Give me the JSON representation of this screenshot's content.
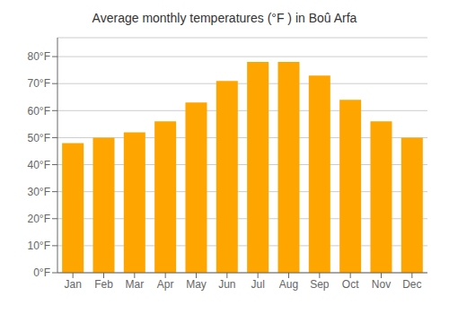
{
  "chart_data": {
    "type": "bar",
    "title": "Average monthly temperatures (°F ) in Boû Arfa",
    "categories": [
      "Jan",
      "Feb",
      "Mar",
      "Apr",
      "May",
      "Jun",
      "Jul",
      "Aug",
      "Sep",
      "Oct",
      "Nov",
      "Dec"
    ],
    "values": [
      48,
      50,
      52,
      56,
      63,
      71,
      78,
      78,
      73,
      64,
      56,
      50
    ],
    "color": "#FFA500",
    "ylim": [
      0,
      87
    ],
    "yticks": [
      {
        "value": 0,
        "label": "0°F"
      },
      {
        "value": 10,
        "label": "10°F"
      },
      {
        "value": 20,
        "label": "20°F"
      },
      {
        "value": 30,
        "label": "30°F"
      },
      {
        "value": 40,
        "label": "40°F"
      },
      {
        "value": 50,
        "label": "50°F"
      },
      {
        "value": 60,
        "label": "60°F"
      },
      {
        "value": 70,
        "label": "70°F"
      },
      {
        "value": 80,
        "label": "80°F"
      }
    ],
    "grid": true
  }
}
